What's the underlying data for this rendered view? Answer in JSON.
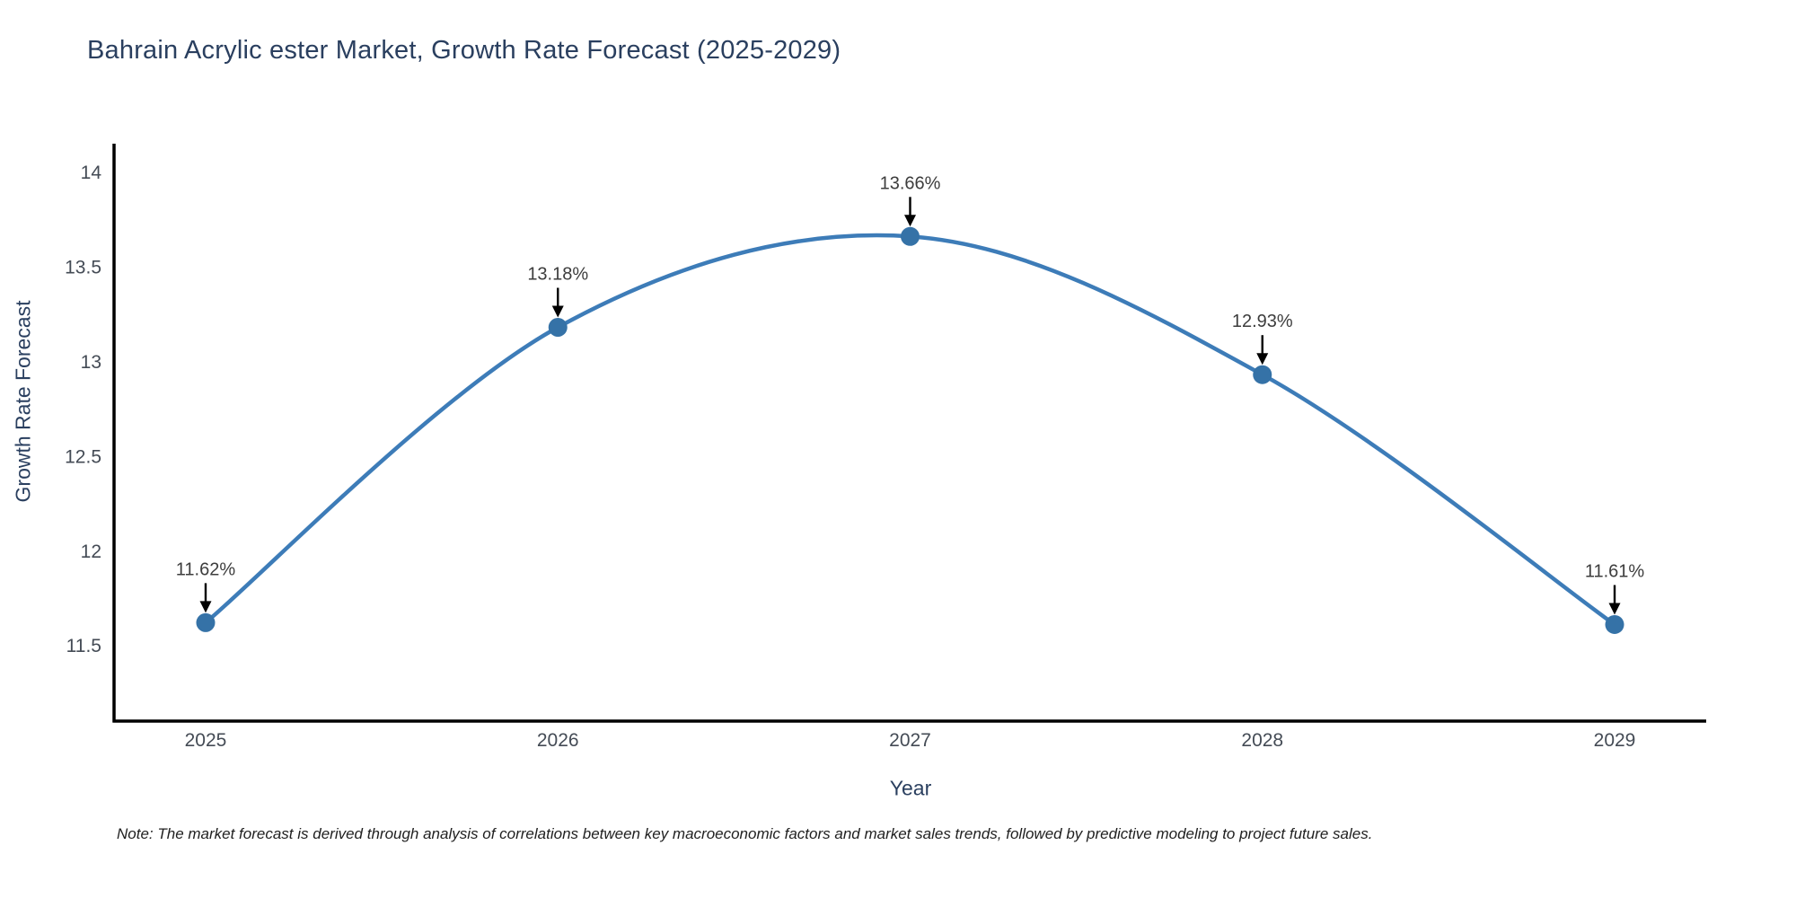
{
  "title": "Bahrain Acrylic ester Market, Growth Rate Forecast (2025-2029)",
  "note": "Note: The market forecast is derived through analysis of correlations between key macroeconomic factors and market sales trends, followed by predictive modeling to project future sales.",
  "chart_data": {
    "type": "line",
    "title": "Bahrain Acrylic ester Market, Growth Rate Forecast (2025-2029)",
    "xlabel": "Year",
    "ylabel": "Growth Rate Forecast",
    "x": [
      2025,
      2026,
      2027,
      2028,
      2029
    ],
    "values": [
      11.62,
      13.18,
      13.66,
      12.93,
      11.61
    ],
    "point_labels": [
      "11.62%",
      "13.18%",
      "13.66%",
      "12.93%",
      "11.61%"
    ],
    "xtick_labels": [
      "2025",
      "2026",
      "2027",
      "2028",
      "2029"
    ],
    "ytick_values": [
      11.5,
      12,
      12.5,
      13,
      13.5,
      14
    ],
    "ytick_labels": [
      "11.5",
      "12",
      "12.5",
      "13",
      "13.5",
      "14"
    ],
    "xlim": [
      2024.74,
      2029.26
    ],
    "ylim": [
      11.1,
      14.15
    ],
    "grid": false,
    "legend": "none",
    "line_color": "#3d7cb8",
    "marker_color": "#3572a7",
    "annotation_color": "#000000"
  }
}
